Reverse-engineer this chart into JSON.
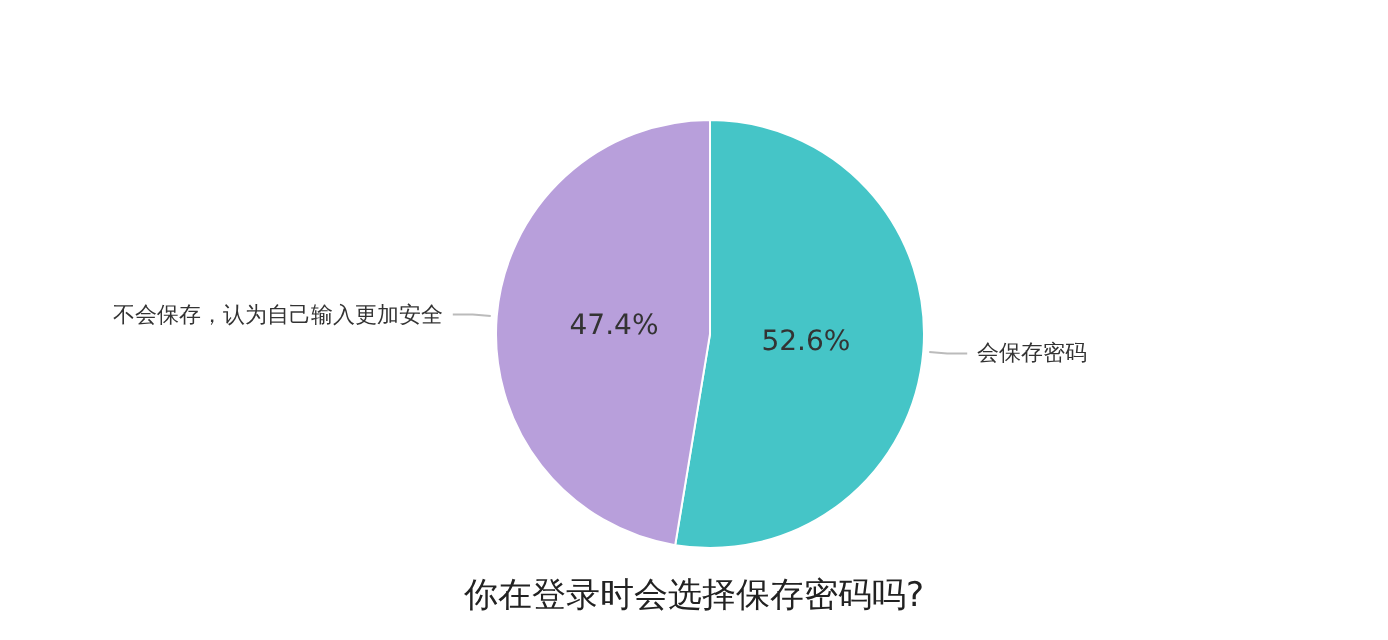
{
  "chart_data": {
    "type": "pie",
    "title": "你在登录时会选择保存密码吗?",
    "categories": [
      "会保存密码",
      "不会保存，认为自己输入更加安全"
    ],
    "values": [
      52.6,
      47.4
    ],
    "colors": [
      "#45c5c7",
      "#b89fdb"
    ],
    "value_labels": [
      "52.6%",
      "47.4%"
    ],
    "legend": false
  }
}
